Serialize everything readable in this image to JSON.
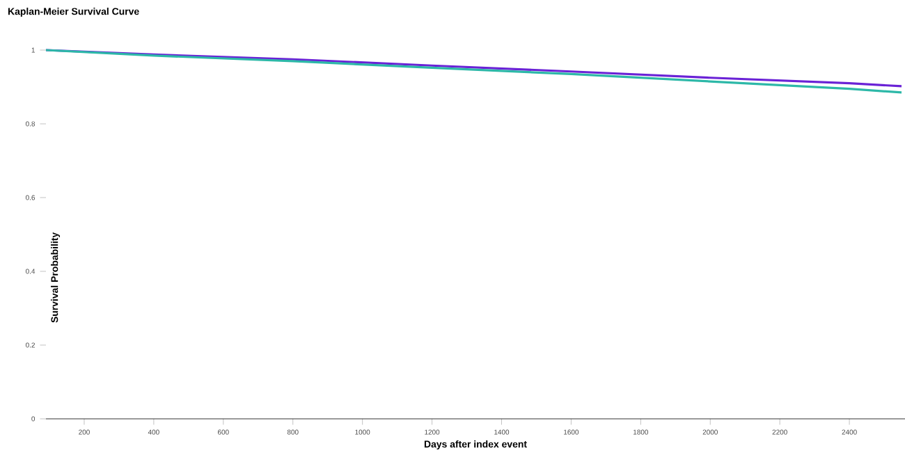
{
  "chart_data": {
    "type": "line",
    "title": "Kaplan-Meier Survival Curve",
    "xlabel": "Days after index event",
    "ylabel": "Survival Probability",
    "xlim": [
      90,
      2560
    ],
    "xticks": [
      200,
      400,
      600,
      800,
      1000,
      1200,
      1400,
      1600,
      1800,
      2000,
      2200,
      2400
    ],
    "ylim": [
      0,
      1
    ],
    "yticks": [
      0,
      0.2,
      0.4,
      0.6,
      0.8,
      1
    ],
    "grid": false,
    "series": [
      {
        "color": "#6a22d6",
        "x": [
          90,
          400,
          800,
          1200,
          1600,
          2000,
          2400,
          2550
        ],
        "values": [
          1,
          0.988,
          0.975,
          0.958,
          0.942,
          0.925,
          0.91,
          0.902
        ]
      },
      {
        "color": "#2db8a8",
        "x": [
          90,
          400,
          800,
          1200,
          1600,
          2000,
          2400,
          2550
        ],
        "values": [
          1,
          0.985,
          0.97,
          0.952,
          0.935,
          0.915,
          0.895,
          0.885
        ]
      }
    ]
  }
}
